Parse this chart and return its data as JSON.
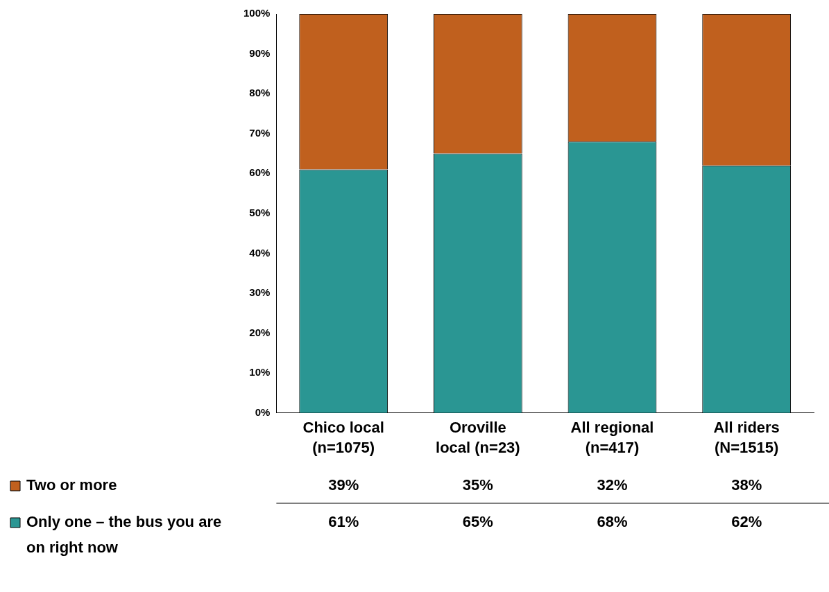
{
  "chart_data": {
    "type": "bar",
    "stacked": true,
    "legend": "bottom",
    "categories": [
      "Chico local\n(n=1075)",
      "Oroville\nlocal (n=23)",
      "All regional\n(n=417)",
      "All riders\n(N=1515)"
    ],
    "ylim": [
      0,
      100
    ],
    "yticks": [
      {
        "value": 0,
        "label": "0%"
      },
      {
        "value": 10,
        "label": "10%"
      },
      {
        "value": 20,
        "label": "20%"
      },
      {
        "value": 30,
        "label": "30%"
      },
      {
        "value": 40,
        "label": "40%"
      },
      {
        "value": 50,
        "label": "50%"
      },
      {
        "value": 60,
        "label": "60%"
      },
      {
        "value": 70,
        "label": "70%"
      },
      {
        "value": 80,
        "label": "80%"
      },
      {
        "value": 90,
        "label": "90%"
      },
      {
        "value": 100,
        "label": "100%"
      }
    ],
    "series": [
      {
        "name": "Only one – the bus you are on right now",
        "color": "#2a9693",
        "values": [
          61,
          65,
          68,
          62
        ],
        "value_labels": [
          "61%",
          "65%",
          "68%",
          "62%"
        ]
      },
      {
        "name": "Two or more",
        "color": "#c0601e",
        "values": [
          39,
          35,
          32,
          38
        ],
        "value_labels": [
          "39%",
          "35%",
          "32%",
          "38%"
        ]
      }
    ]
  }
}
